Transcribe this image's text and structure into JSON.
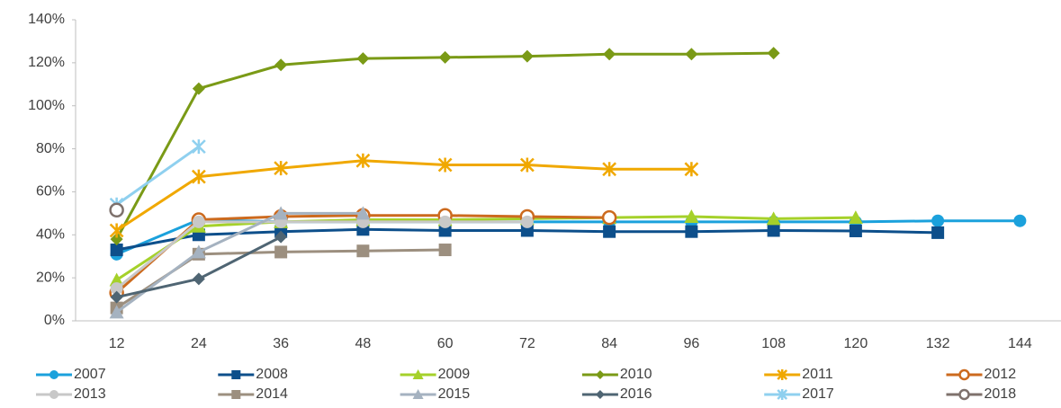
{
  "chart_data": {
    "type": "line",
    "categories": [
      12,
      24,
      36,
      48,
      60,
      72,
      84,
      96,
      108,
      120,
      132,
      144
    ],
    "ylim": [
      0,
      140
    ],
    "yticks": [
      {
        "value": 0,
        "label": "0%"
      },
      {
        "value": 20,
        "label": "20%"
      },
      {
        "value": 40,
        "label": "40%"
      },
      {
        "value": 60,
        "label": "60%"
      },
      {
        "value": 80,
        "label": "80%"
      },
      {
        "value": 100,
        "label": "100%"
      },
      {
        "value": 120,
        "label": "120%"
      },
      {
        "value": 140,
        "label": "140%"
      }
    ],
    "grid": false,
    "legend": "bottom",
    "series": [
      {
        "name": "2007",
        "color": "#1ba1dc",
        "marker": "circle",
        "values": [
          31,
          47,
          46,
          46,
          46,
          46,
          46,
          46,
          46,
          46,
          46.5,
          46.5
        ]
      },
      {
        "name": "2008",
        "color": "#0d4f8b",
        "marker": "square",
        "values": [
          33,
          40,
          41.5,
          42.5,
          42,
          42,
          41.5,
          41.5,
          42,
          41.8,
          41,
          null
        ]
      },
      {
        "name": "2009",
        "color": "#a5d12a",
        "marker": "triangle",
        "values": [
          19,
          44,
          46,
          47,
          47,
          47.5,
          48,
          48.5,
          47.5,
          48,
          null,
          null
        ]
      },
      {
        "name": "2010",
        "color": "#7a9a16",
        "marker": "diamond",
        "values": [
          38,
          108,
          119,
          122,
          122.5,
          123,
          124,
          124,
          124.5,
          null,
          null,
          null
        ]
      },
      {
        "name": "2011",
        "color": "#f0a800",
        "marker": "asterisk",
        "values": [
          42,
          67,
          71,
          74.5,
          72.5,
          72.5,
          70.5,
          70.5,
          null,
          null,
          null,
          null
        ]
      },
      {
        "name": "2012",
        "color": "#cc6a1e",
        "marker": "open-circle",
        "values": [
          13,
          47,
          48.5,
          49,
          49,
          48.5,
          48,
          null,
          null,
          null,
          null,
          null
        ]
      },
      {
        "name": "2013",
        "color": "#c8c8c8",
        "marker": "circle",
        "values": [
          15,
          46,
          46,
          46,
          46,
          46,
          null,
          null,
          null,
          null,
          null,
          null
        ]
      },
      {
        "name": "2014",
        "color": "#9c8f7f",
        "marker": "square",
        "values": [
          6,
          31,
          32,
          32.5,
          33,
          null,
          null,
          null,
          null,
          null,
          null,
          null
        ]
      },
      {
        "name": "2015",
        "color": "#a5b2c0",
        "marker": "triangle",
        "values": [
          4,
          32,
          50,
          50,
          null,
          null,
          null,
          null,
          null,
          null,
          null,
          null
        ]
      },
      {
        "name": "2016",
        "color": "#4f6573",
        "marker": "diamond",
        "values": [
          11,
          19.5,
          39,
          null,
          null,
          null,
          null,
          null,
          null,
          null,
          null,
          null
        ]
      },
      {
        "name": "2017",
        "color": "#8fd0ef",
        "marker": "asterisk",
        "values": [
          54,
          81,
          null,
          null,
          null,
          null,
          null,
          null,
          null,
          null,
          null,
          null
        ]
      },
      {
        "name": "2018",
        "color": "#7e716c",
        "marker": "open-circle",
        "values": [
          51.5,
          null,
          null,
          null,
          null,
          null,
          null,
          null,
          null,
          null,
          null,
          null
        ]
      }
    ]
  }
}
